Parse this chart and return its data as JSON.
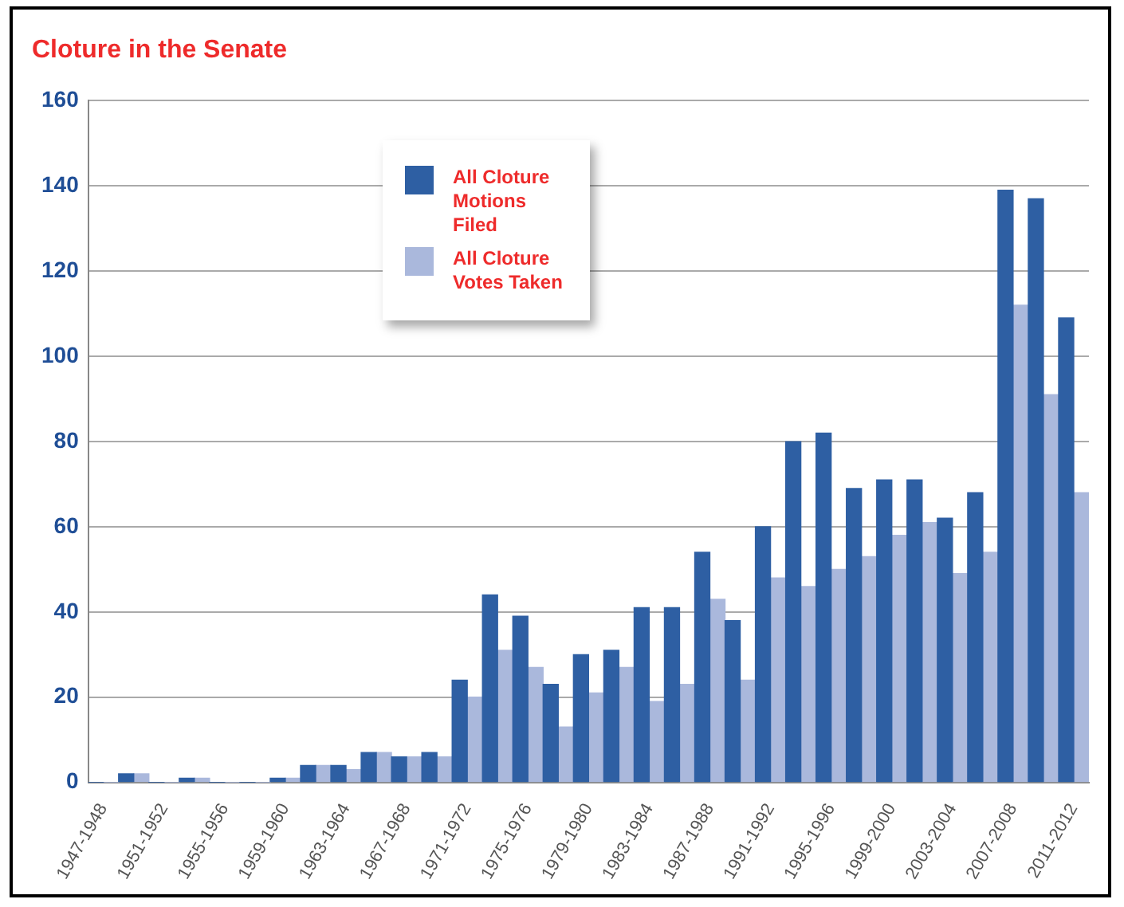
{
  "chart_data": {
    "type": "bar",
    "title": "Cloture in the Senate",
    "categories": [
      "1947-1948",
      null,
      "1951-1952",
      null,
      "1955-1956",
      null,
      "1959-1960",
      null,
      "1963-1964",
      null,
      "1967-1968",
      null,
      "1971-1972",
      null,
      "1975-1976",
      null,
      "1979-1980",
      null,
      "1983-1984",
      null,
      "1987-1988",
      null,
      "1991-1992",
      null,
      "1995-1996",
      null,
      "1999-2000",
      null,
      "2003-2004",
      null,
      "2007-2008",
      null,
      "2011-2012"
    ],
    "series": [
      {
        "name": "All Cloture Motions Filed",
        "color": "#2e5fa3",
        "values": [
          0,
          2,
          0,
          1,
          0,
          0,
          1,
          4,
          4,
          7,
          6,
          7,
          24,
          44,
          39,
          23,
          30,
          31,
          41,
          41,
          54,
          38,
          60,
          80,
          82,
          69,
          71,
          71,
          62,
          68,
          139,
          137,
          109
        ]
      },
      {
        "name": "All Cloture Votes Taken",
        "color": "#aab8dc",
        "values": [
          0,
          2,
          0,
          1,
          0,
          0,
          1,
          4,
          3,
          7,
          6,
          6,
          20,
          31,
          27,
          13,
          21,
          27,
          19,
          23,
          43,
          24,
          48,
          46,
          50,
          53,
          58,
          61,
          49,
          54,
          112,
          91,
          68
        ]
      }
    ],
    "ylim": [
      0,
      160
    ],
    "yticks": [
      0,
      20,
      40,
      60,
      80,
      100,
      120,
      140,
      160
    ],
    "grid": "y",
    "legend": "top"
  }
}
